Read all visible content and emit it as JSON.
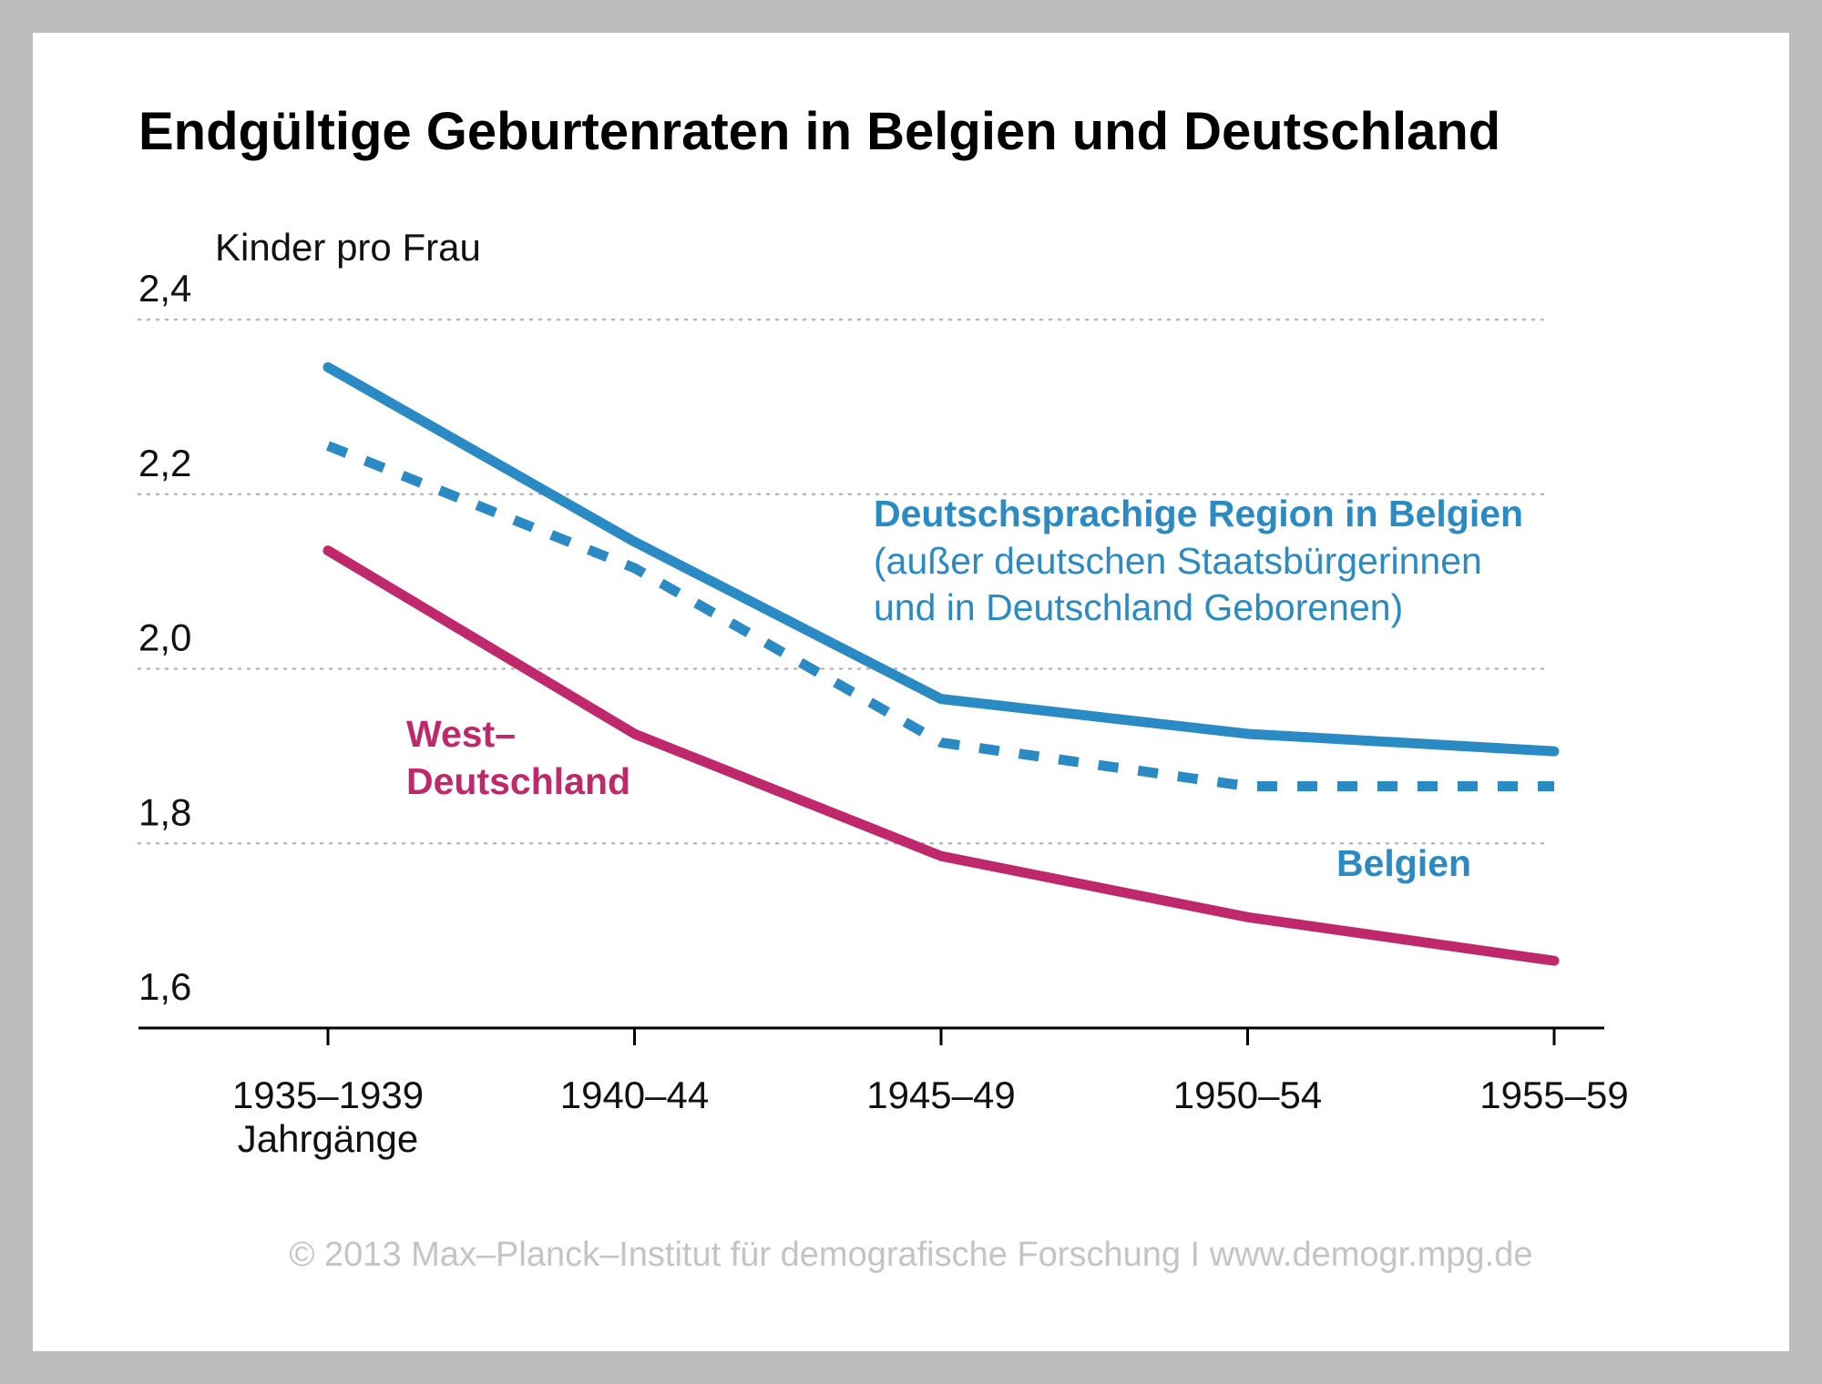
{
  "chart_data": {
    "type": "line",
    "title": "Endgültige Geburtenraten in Belgien und Deutschland",
    "ylabel": "Kinder pro Frau",
    "xlabel": "Jahrgänge",
    "categories": [
      "1935–1939",
      "1940–44",
      "1945–49",
      "1950–54",
      "1955–59"
    ],
    "yticks": [
      "1,6",
      "1,8",
      "2,0",
      "2,2",
      "2,4"
    ],
    "ytick_values": [
      1.6,
      1.8,
      2.0,
      2.2,
      2.4
    ],
    "ylim": [
      1.55,
      2.4
    ],
    "grid": "horizontal dotted",
    "series": [
      {
        "name": "Deutschsprachige Region in Belgien",
        "note_line1": "(außer deutschen Staatsbürgerinnen",
        "note_line2": "und in Deutschland Geborenen)",
        "values": [
          2.31,
          2.11,
          1.93,
          1.89,
          1.87
        ],
        "color": "#2a8ac4",
        "style": "solid"
      },
      {
        "name": "Belgien",
        "values": [
          2.22,
          2.08,
          1.88,
          1.83,
          1.83
        ],
        "color": "#2a8ac4",
        "style": "dashed"
      },
      {
        "name_line1": "West–",
        "name_line2": "Deutschland",
        "values": [
          2.1,
          1.89,
          1.75,
          1.68,
          1.63
        ],
        "color": "#c0286c",
        "style": "solid"
      }
    ]
  },
  "footer": "© 2013 Max–Planck–Institut für demografische Forschung I www.demogr.mpg.de"
}
